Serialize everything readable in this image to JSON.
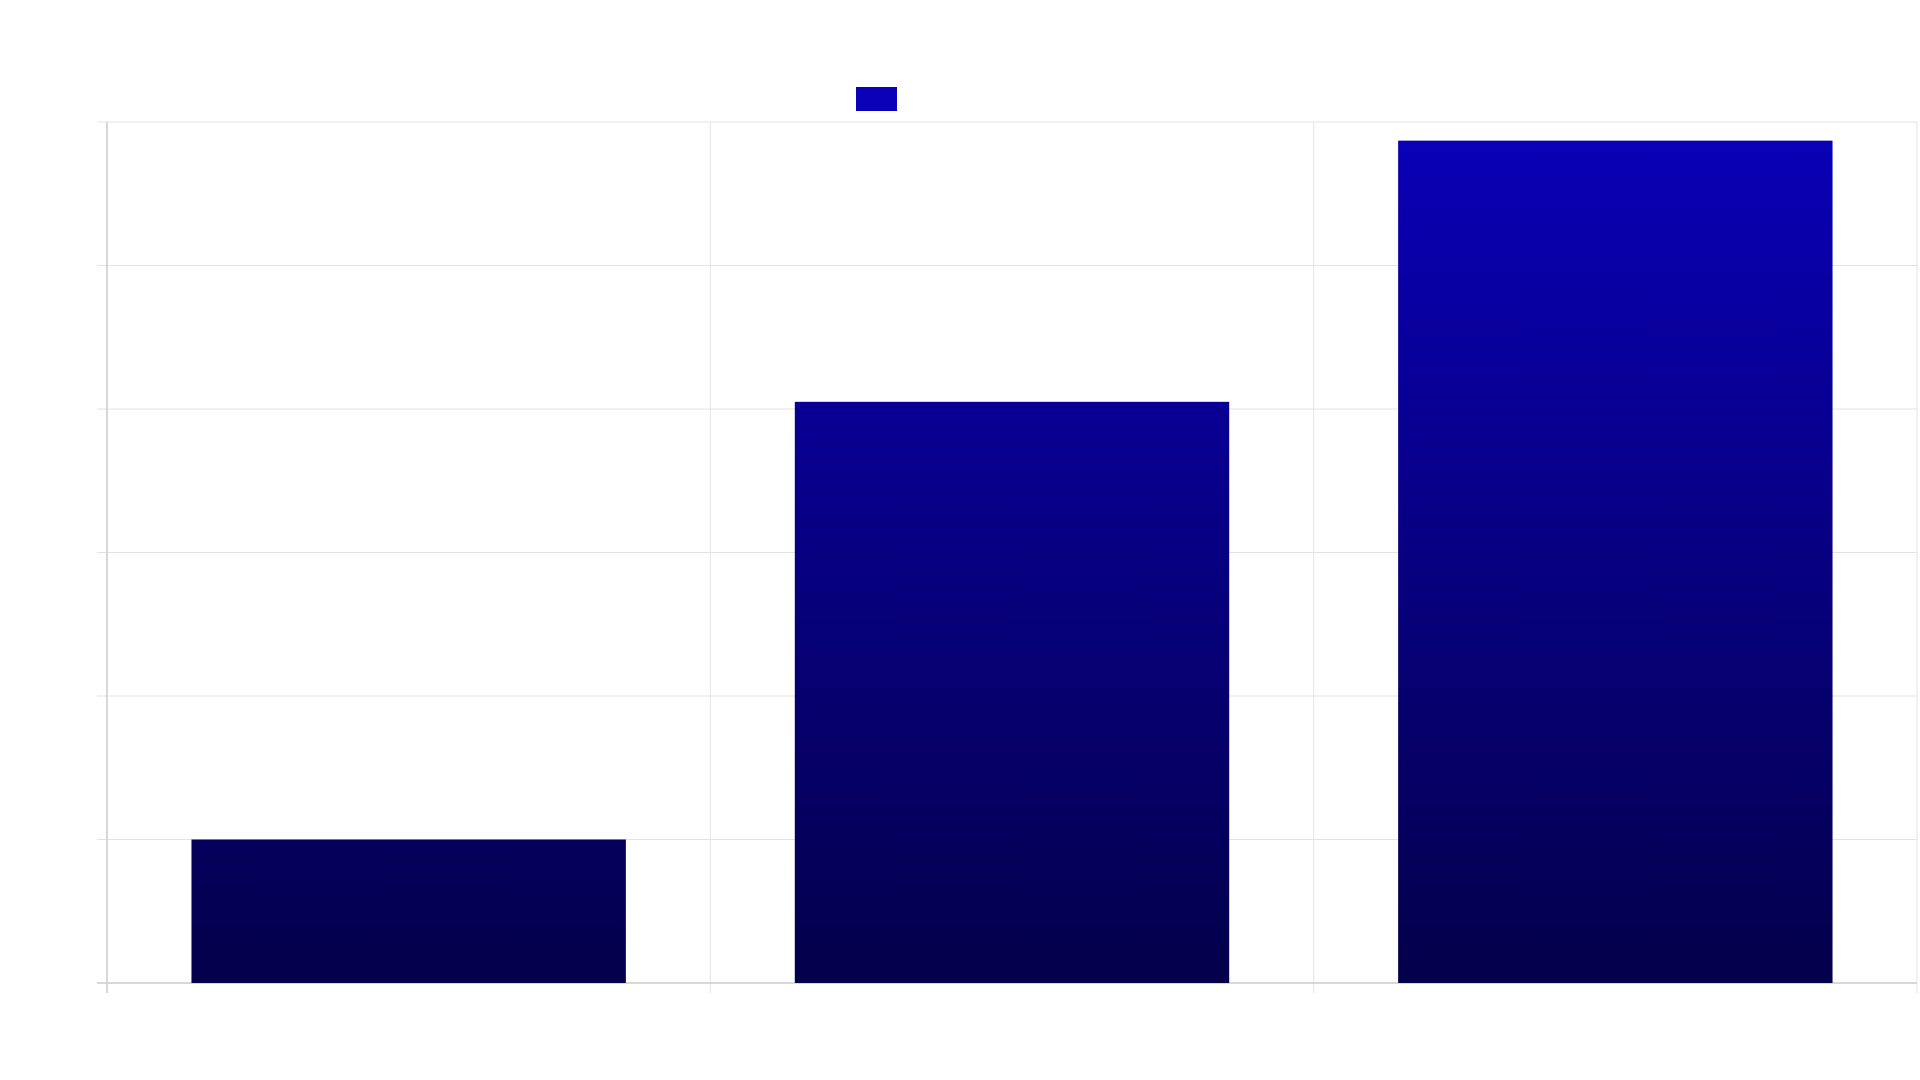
{
  "colors": {
    "bar_top": "#0a00b8",
    "bar_bottom": "#04004a",
    "legend_swatch": "#0a00b8",
    "grid": "#e3e3e3",
    "axis": "#cccccc"
  },
  "legend": {
    "series_label": ""
  },
  "chart_data": {
    "type": "bar",
    "categories": [
      "",
      "",
      ""
    ],
    "values": [
      1,
      4.05,
      5.87
    ],
    "ylim": [
      0,
      6
    ],
    "y_ticks": [
      0,
      1,
      2,
      3,
      4,
      5,
      6
    ],
    "grid": true,
    "legend_position": "top-center",
    "title": "",
    "xlabel": "",
    "ylabel": ""
  }
}
